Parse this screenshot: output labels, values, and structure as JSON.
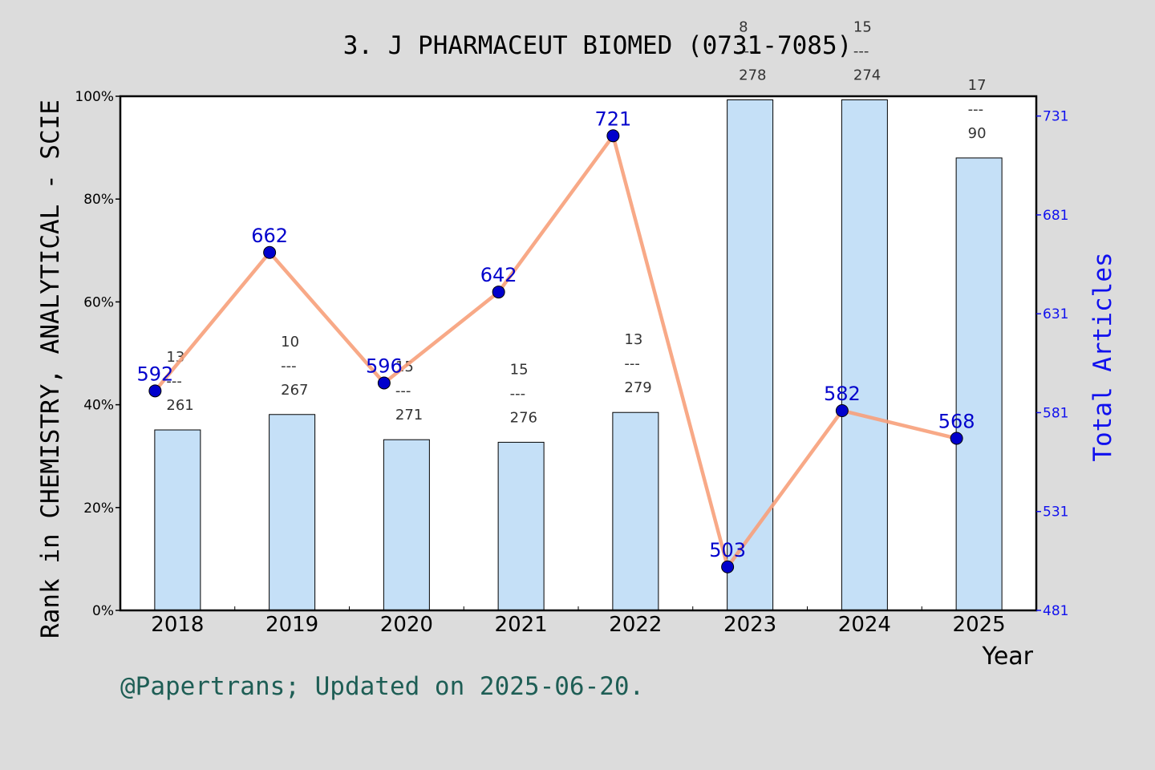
{
  "chart_data": {
    "type": "bar+line",
    "title": "3. J PHARMACEUT BIOMED (0731-7085)",
    "xlabel": "Year",
    "ylabel": "Rank in CHEMISTRY, ANALYTICAL - SCIE",
    "y2label": "Total Articles",
    "categories": [
      "2018",
      "2019",
      "2020",
      "2021",
      "2022",
      "2023",
      "2024",
      "2025"
    ],
    "bars": {
      "rank": [
        13,
        10,
        15,
        15,
        13,
        8,
        15,
        17
      ],
      "total": [
        261,
        267,
        271,
        276,
        279,
        278,
        274,
        90
      ],
      "fraction_labels": [
        "13\n---\n261",
        "10\n---\n267",
        "15\n---\n271",
        "15\n---\n276",
        "13\n---\n279",
        "8\n---\n278",
        "15\n---\n274",
        "17\n---\n90"
      ],
      "values_pct": [
        35.1,
        38.1,
        33.2,
        32.7,
        38.5,
        99.3,
        99.3,
        88.0
      ]
    },
    "line": {
      "values": [
        592,
        662,
        596,
        642,
        721,
        503,
        582,
        568
      ]
    },
    "ylim": [
      0,
      100
    ],
    "y2lim": [
      481,
      741
    ],
    "y_ticks": [
      "0%",
      "20%",
      "40%",
      "60%",
      "80%",
      "100%"
    ],
    "y2_ticks": [
      "481",
      "531",
      "581",
      "631",
      "681",
      "731"
    ],
    "colors": {
      "bar": "#c5e0f7",
      "line": "#f7a07a",
      "point": "#0000cc",
      "right_axis": "#1010ee",
      "footer": "#1e5e55"
    }
  },
  "footer": "@Papertrans; Updated on 2025-06-20."
}
